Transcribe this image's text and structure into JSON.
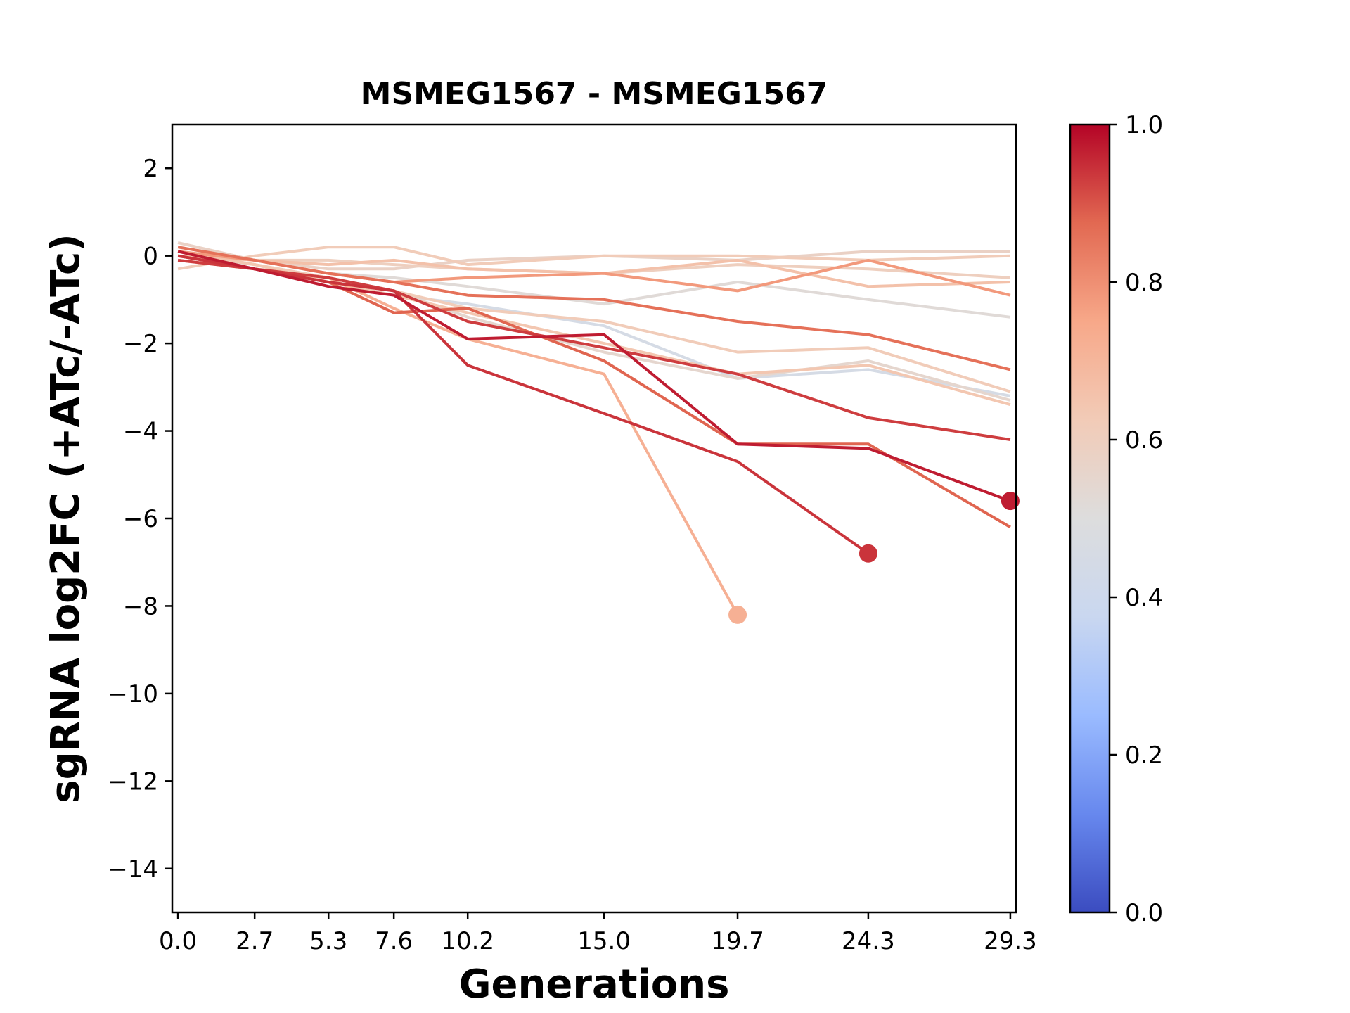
{
  "chart_data": {
    "type": "line",
    "title": "MSMEG1567 - MSMEG1567",
    "xlabel": "Generations",
    "ylabel": "sgRNA log2FC (+ATc/-ATc)",
    "xlim": [
      -0.2,
      29.5
    ],
    "ylim": [
      -15,
      3
    ],
    "x_ticks": [
      0.0,
      2.7,
      5.3,
      7.6,
      10.2,
      15.0,
      19.7,
      24.3,
      29.3
    ],
    "x_tick_labels": [
      "0.0",
      "2.7",
      "5.3",
      "7.6",
      "10.2",
      "15.0",
      "19.7",
      "24.3",
      "29.3"
    ],
    "y_ticks": [
      2,
      0,
      -2,
      -4,
      -6,
      -8,
      -10,
      -12,
      -14
    ],
    "y_tick_labels": [
      "2",
      "0",
      "−2",
      "−4",
      "−6",
      "−8",
      "−10",
      "−12",
      "−14"
    ],
    "grid": false,
    "legend": false,
    "colorbar": {
      "colormap": "coolwarm",
      "range": [
        0.0,
        1.0
      ],
      "ticks": [
        0.0,
        0.2,
        0.4,
        0.6,
        0.8,
        1.0
      ],
      "tick_labels": [
        "0.0",
        "0.2",
        "0.4",
        "0.6",
        "0.8",
        "1.0"
      ],
      "stops": [
        "#3b4cc0",
        "#6788ee",
        "#9abbff",
        "#c9d7f0",
        "#dddddd",
        "#f2cbb7",
        "#f7a889",
        "#e26952",
        "#b40426"
      ]
    },
    "series": [
      {
        "color_value": 0.58,
        "x": [
          0,
          2.7,
          5.3,
          7.6,
          10.2,
          15.0,
          19.7,
          24.3,
          29.3
        ],
        "y": [
          0.3,
          -0.1,
          -0.3,
          -0.3,
          -0.1,
          0.0,
          -0.1,
          0.1,
          0.1
        ]
      },
      {
        "color_value": 0.62,
        "x": [
          0,
          2.7,
          5.3,
          7.6,
          10.2,
          15.0,
          19.7,
          24.3,
          29.3
        ],
        "y": [
          -0.3,
          0.0,
          0.2,
          0.2,
          -0.2,
          0.0,
          0.0,
          -0.1,
          0.0
        ]
      },
      {
        "color_value": 0.66,
        "x": [
          0,
          2.7,
          5.3,
          7.6,
          10.2,
          15.0,
          19.7,
          24.3,
          29.3
        ],
        "y": [
          0.0,
          -0.1,
          -0.2,
          -0.1,
          -0.3,
          -0.4,
          -0.1,
          -0.7,
          -0.6
        ]
      },
      {
        "color_value": 0.6,
        "x": [
          0,
          2.7,
          5.3,
          7.6,
          10.2,
          15.0,
          19.7,
          24.3,
          29.3
        ],
        "y": [
          0.1,
          -0.1,
          -0.1,
          -0.2,
          -0.3,
          -0.4,
          -0.2,
          -0.3,
          -0.5
        ]
      },
      {
        "color_value": 0.52,
        "x": [
          0,
          2.7,
          5.3,
          7.6,
          10.2,
          15.0,
          19.7,
          24.3,
          29.3
        ],
        "y": [
          0.2,
          -0.1,
          -0.4,
          -0.5,
          -0.7,
          -1.1,
          -0.6,
          -1.0,
          -1.4
        ]
      },
      {
        "color_value": 0.45,
        "x": [
          0,
          2.7,
          5.3,
          7.6,
          10.2,
          15.0,
          19.7,
          24.3,
          29.3
        ],
        "y": [
          0.1,
          -0.2,
          -0.6,
          -0.9,
          -1.1,
          -1.6,
          -2.8,
          -2.6,
          -3.2
        ]
      },
      {
        "color_value": 0.55,
        "x": [
          0,
          2.7,
          5.3,
          7.6,
          10.2,
          15.0,
          19.7,
          24.3,
          29.3
        ],
        "y": [
          0.0,
          -0.2,
          -0.5,
          -0.8,
          -1.4,
          -2.2,
          -2.8,
          -2.4,
          -3.3
        ]
      },
      {
        "color_value": 0.62,
        "x": [
          0,
          2.7,
          5.3,
          7.6,
          10.2,
          15.0,
          19.7,
          24.3,
          29.3
        ],
        "y": [
          0.1,
          -0.2,
          -0.5,
          -0.8,
          -1.2,
          -1.5,
          -2.2,
          -2.1,
          -3.1
        ]
      },
      {
        "color_value": 0.64,
        "x": [
          0,
          2.7,
          5.3,
          7.6,
          10.2,
          15.0,
          19.7,
          24.3,
          29.3
        ],
        "y": [
          0.1,
          -0.2,
          -0.6,
          -0.9,
          -1.3,
          -2.0,
          -2.7,
          -2.5,
          -3.4
        ]
      },
      {
        "color_value": 0.78,
        "x": [
          0,
          2.7,
          5.3,
          7.6,
          10.2,
          15.0,
          19.7,
          24.3,
          29.3
        ],
        "y": [
          0.1,
          -0.1,
          -0.4,
          -0.6,
          -0.5,
          -0.4,
          -0.8,
          -0.1,
          -0.9
        ]
      },
      {
        "color_value": 0.86,
        "x": [
          0,
          2.7,
          5.3,
          7.6,
          10.2,
          15.0,
          19.7,
          24.3,
          29.3
        ],
        "y": [
          0.2,
          -0.1,
          -0.4,
          -0.6,
          -0.9,
          -1.0,
          -1.5,
          -1.8,
          -2.6
        ]
      },
      {
        "color_value": 0.93,
        "x": [
          0,
          2.7,
          5.3,
          7.6,
          10.2,
          15.0,
          19.7,
          24.3,
          29.3
        ],
        "y": [
          -0.1,
          -0.3,
          -0.5,
          -0.8,
          -1.5,
          -2.1,
          -2.7,
          -3.7,
          -4.2
        ]
      },
      {
        "color_value": 0.88,
        "x": [
          0,
          2.7,
          5.3,
          7.6,
          10.2,
          15.0,
          19.7,
          24.3,
          29.3
        ],
        "y": [
          0.0,
          -0.3,
          -0.6,
          -1.3,
          -1.2,
          -2.4,
          -4.3,
          -4.3,
          -6.2
        ]
      },
      {
        "color_value": 0.97,
        "x": [
          0,
          2.7,
          5.3,
          7.6,
          10.2,
          15.0,
          19.7,
          24.3,
          29.3
        ],
        "y": [
          0.1,
          -0.3,
          -0.7,
          -0.9,
          -1.9,
          -1.8,
          -4.3,
          -4.4,
          -5.6
        ]
      },
      {
        "color_value": 0.94,
        "x": [
          0,
          2.7,
          5.3,
          7.6,
          10.2,
          15.0,
          19.7,
          24.3
        ],
        "y": [
          0.0,
          -0.3,
          -0.6,
          -0.8,
          -2.5,
          -3.6,
          -4.7,
          -6.8
        ]
      },
      {
        "color_value": 0.72,
        "x": [
          0,
          2.7,
          5.3,
          7.6,
          10.2,
          15.0,
          19.7
        ],
        "y": [
          -0.1,
          -0.3,
          -0.5,
          -1.2,
          -1.9,
          -2.7,
          -8.2
        ]
      }
    ],
    "endpoint_markers": [
      {
        "x": 19.7,
        "y": -8.2,
        "color_value": 0.72
      },
      {
        "x": 24.3,
        "y": -6.8,
        "color_value": 0.94
      },
      {
        "x": 29.3,
        "y": -5.6,
        "color_value": 0.97
      }
    ]
  }
}
